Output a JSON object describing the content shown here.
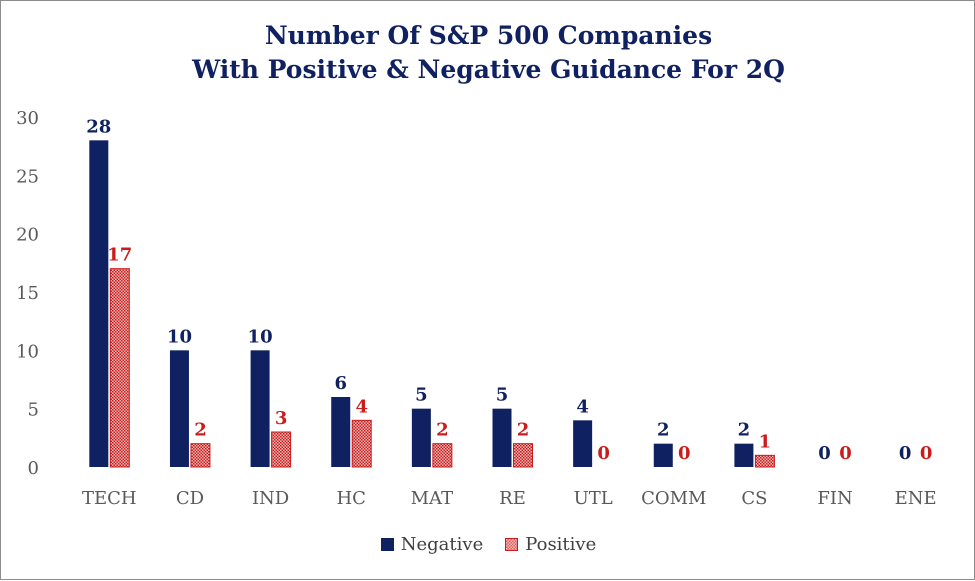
{
  "chart_data": {
    "type": "bar",
    "title_line1": "Number Of S&P 500 Companies",
    "title_line2": "With Positive & Negative Guidance For 2Q",
    "categories": [
      "TECH",
      "CD",
      "IND",
      "HC",
      "MAT",
      "RE",
      "UTL",
      "COMM",
      "CS",
      "FIN",
      "ENE"
    ],
    "series": [
      {
        "name": "Negative",
        "values": [
          28,
          10,
          10,
          6,
          5,
          5,
          4,
          2,
          2,
          0,
          0
        ],
        "color": "#0f2160"
      },
      {
        "name": "Positive",
        "values": [
          17,
          2,
          3,
          4,
          2,
          2,
          0,
          0,
          1,
          0,
          0
        ],
        "color": "#cc1b1b"
      }
    ],
    "ylim": [
      0,
      30
    ],
    "yticks": [
      0,
      5,
      10,
      15,
      20,
      25,
      30
    ],
    "grid": false,
    "legend_position": "bottom",
    "data_labels": true
  }
}
